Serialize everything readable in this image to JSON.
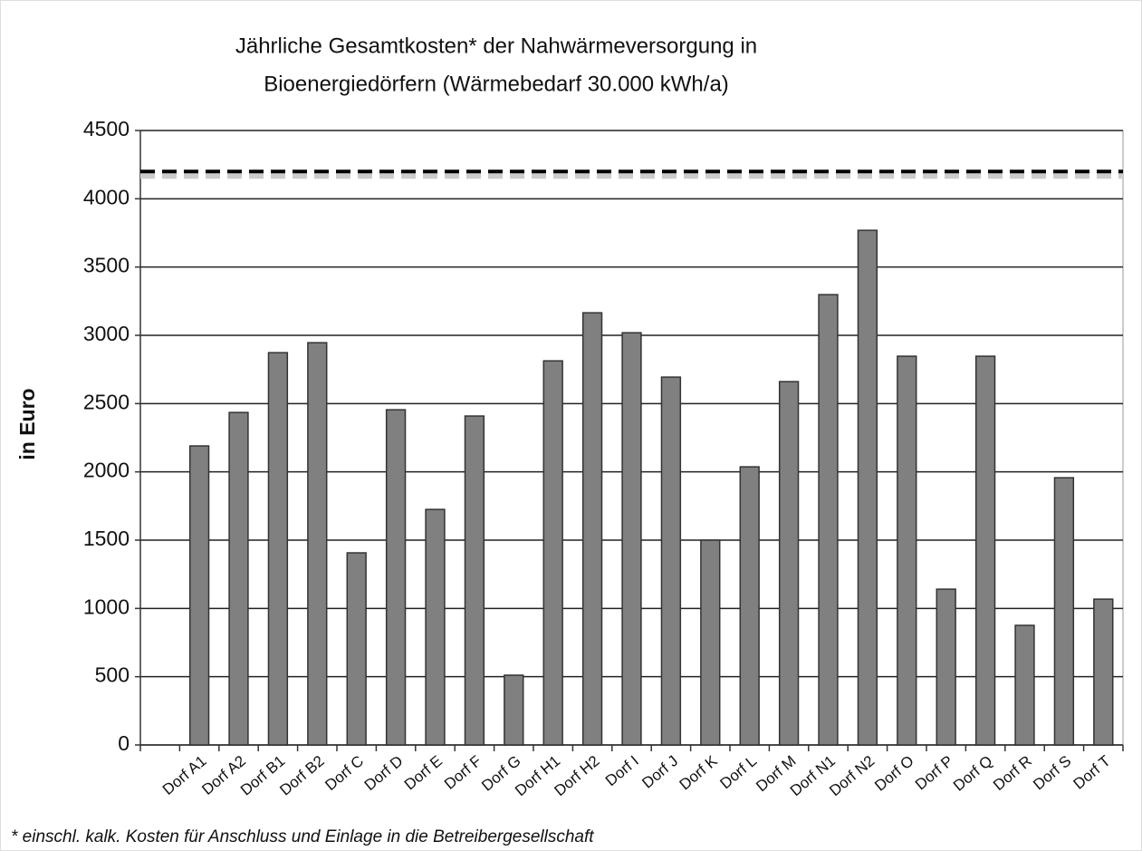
{
  "chart_data": {
    "type": "bar",
    "title": [
      "Jährliche Gesamtkosten* der Nahwärmeversorgung in",
      "Bioenergiedörfern (Wärmebedarf 30.000 kWh/a)"
    ],
    "y_label": "in Euro",
    "footnote": "* einschl. kalk. Kosten für Anschluss und Einlage in die Betreibergesellschaft",
    "categories": [
      null,
      "Dorf A1",
      "Dorf A2",
      "Dorf B1",
      "Dorf B2",
      "Dorf C",
      "Dorf D",
      "Dorf E",
      "Dorf F",
      "Dorf G",
      "Dorf H1",
      "Dorf H2",
      "Dorf I",
      "Dorf J",
      "Dorf K",
      "Dorf L",
      "Dorf M",
      "Dorf N1",
      "Dorf N2",
      "Dorf O",
      "Dorf P",
      "Dorf Q",
      "Dorf R",
      "Dorf S",
      "Dorf T"
    ],
    "values": [
      null,
      2190,
      2435,
      2873,
      2946,
      1407,
      2455,
      1725,
      2409,
      511,
      2813,
      3165,
      3019,
      2694,
      1500,
      2037,
      2661,
      3298,
      3769,
      2847,
      1141,
      2847,
      876,
      1957,
      1068
    ],
    "color": "#808080",
    "reference_line": 4200,
    "ylim": [
      0,
      4500
    ],
    "yticks": [
      0,
      500,
      1000,
      1500,
      2000,
      2500,
      3000,
      3500,
      4000,
      4500
    ],
    "grid": true
  }
}
